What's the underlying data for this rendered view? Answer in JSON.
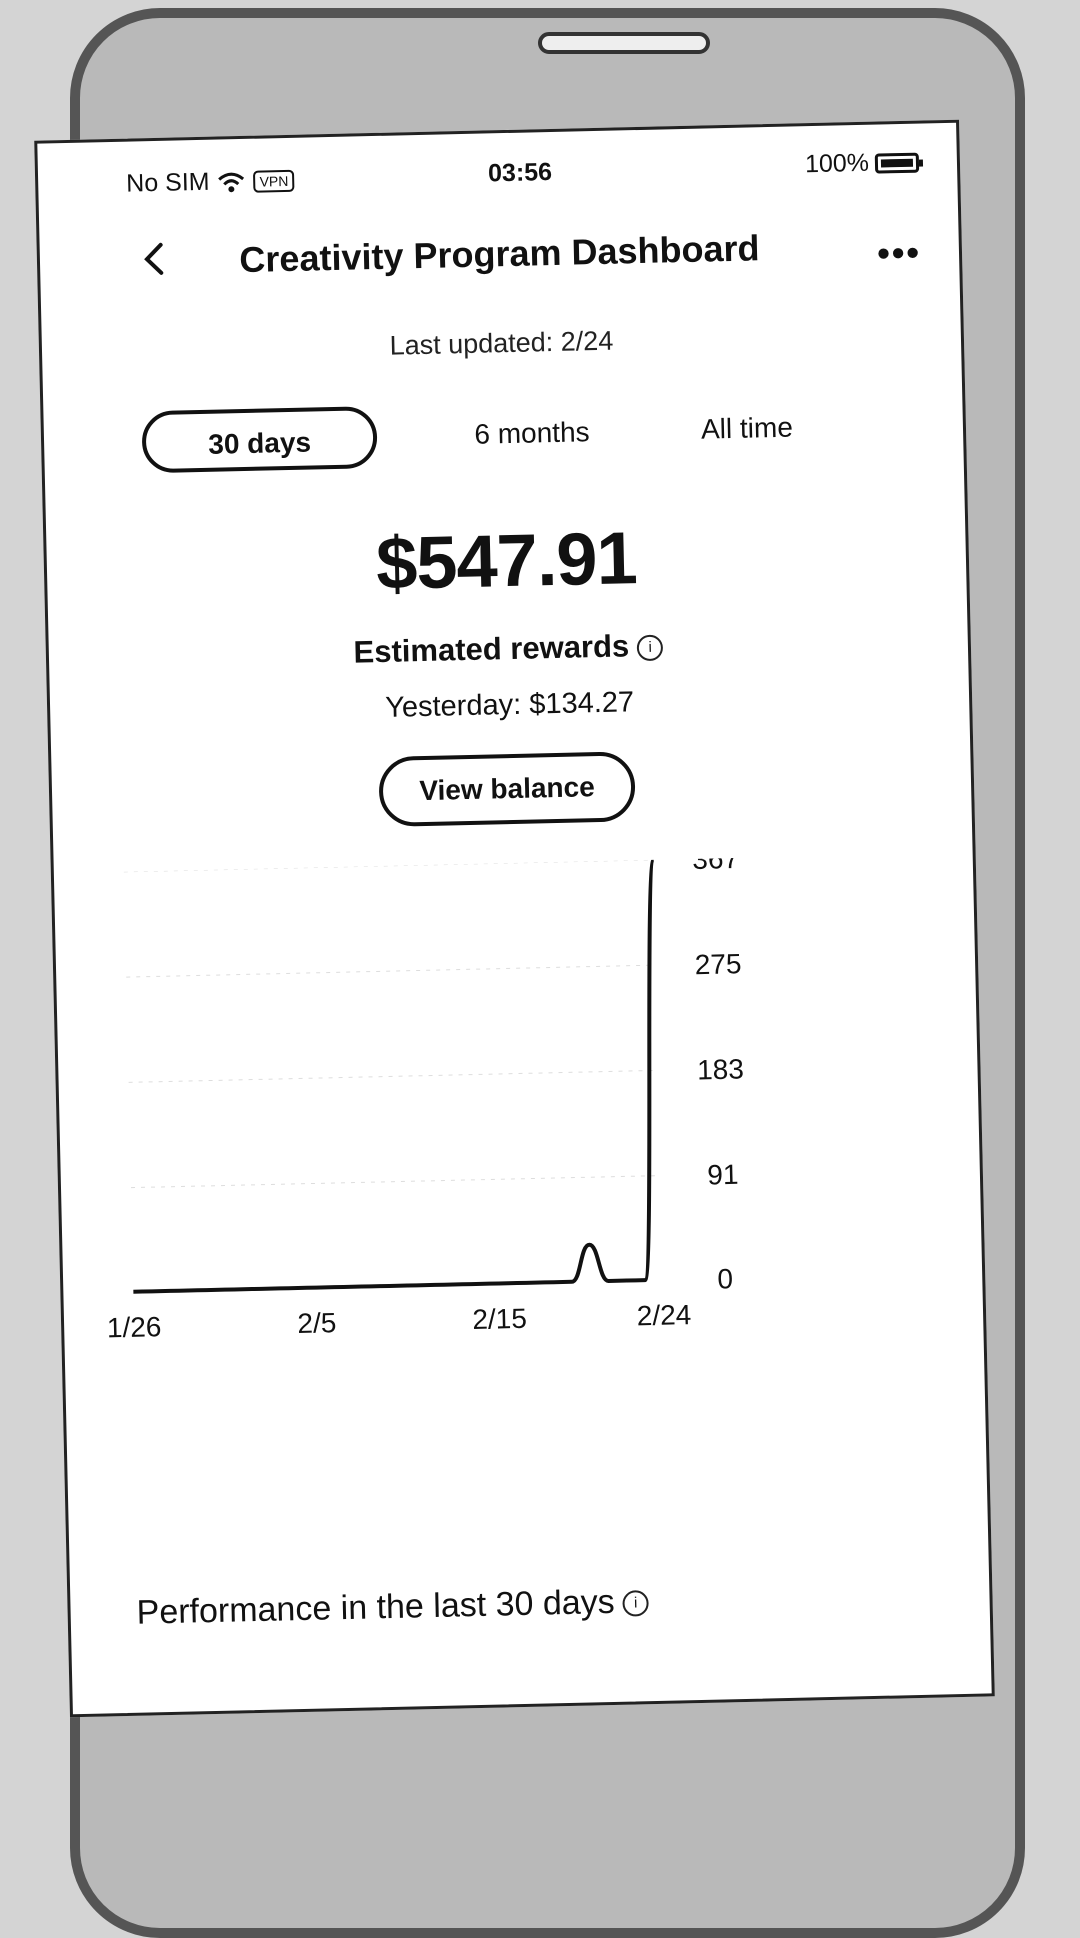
{
  "status_bar": {
    "carrier": "No SIM",
    "vpn": "VPN",
    "time": "03:56",
    "battery": "100%",
    "icons": [
      "wifi-icon",
      "vpn-icon",
      "battery-icon"
    ]
  },
  "header": {
    "title": "Creativity Program Dashboard",
    "back_icon": "back-chevron-icon",
    "more_icon": "more-dots-icon"
  },
  "last_updated": "Last updated: 2/24",
  "tabs": [
    {
      "label": "30 days",
      "selected": true
    },
    {
      "label": "6 months",
      "selected": false
    },
    {
      "label": "All time",
      "selected": false
    }
  ],
  "summary": {
    "amount": "$547.91",
    "label": "Estimated rewards",
    "yesterday": "Yesterday: $134.27",
    "button": "View balance"
  },
  "chart_data": {
    "type": "line",
    "x_ticks": [
      "1/26",
      "2/5",
      "2/15",
      "2/24"
    ],
    "y_ticks": [
      "367",
      "275",
      "183",
      "91",
      "0"
    ],
    "ylim": [
      0,
      367
    ],
    "grid": true,
    "series": [
      {
        "values": [
          0,
          0,
          0,
          0,
          0,
          0,
          0,
          0,
          0,
          0,
          0,
          0,
          0,
          0,
          0,
          0,
          0,
          0,
          0,
          0,
          0,
          0,
          0,
          0,
          0,
          32,
          0,
          0,
          0,
          367
        ]
      }
    ],
    "x_dates": [
      "1/26",
      "1/27",
      "1/28",
      "1/29",
      "1/30",
      "1/31",
      "2/1",
      "2/2",
      "2/3",
      "2/4",
      "2/5",
      "2/6",
      "2/7",
      "2/8",
      "2/9",
      "2/10",
      "2/11",
      "2/12",
      "2/13",
      "2/14",
      "2/15",
      "2/16",
      "2/17",
      "2/18",
      "2/19",
      "2/20",
      "2/21",
      "2/22",
      "2/23",
      "2/24"
    ]
  },
  "performance": {
    "title": "Performance in the last 30 days"
  }
}
